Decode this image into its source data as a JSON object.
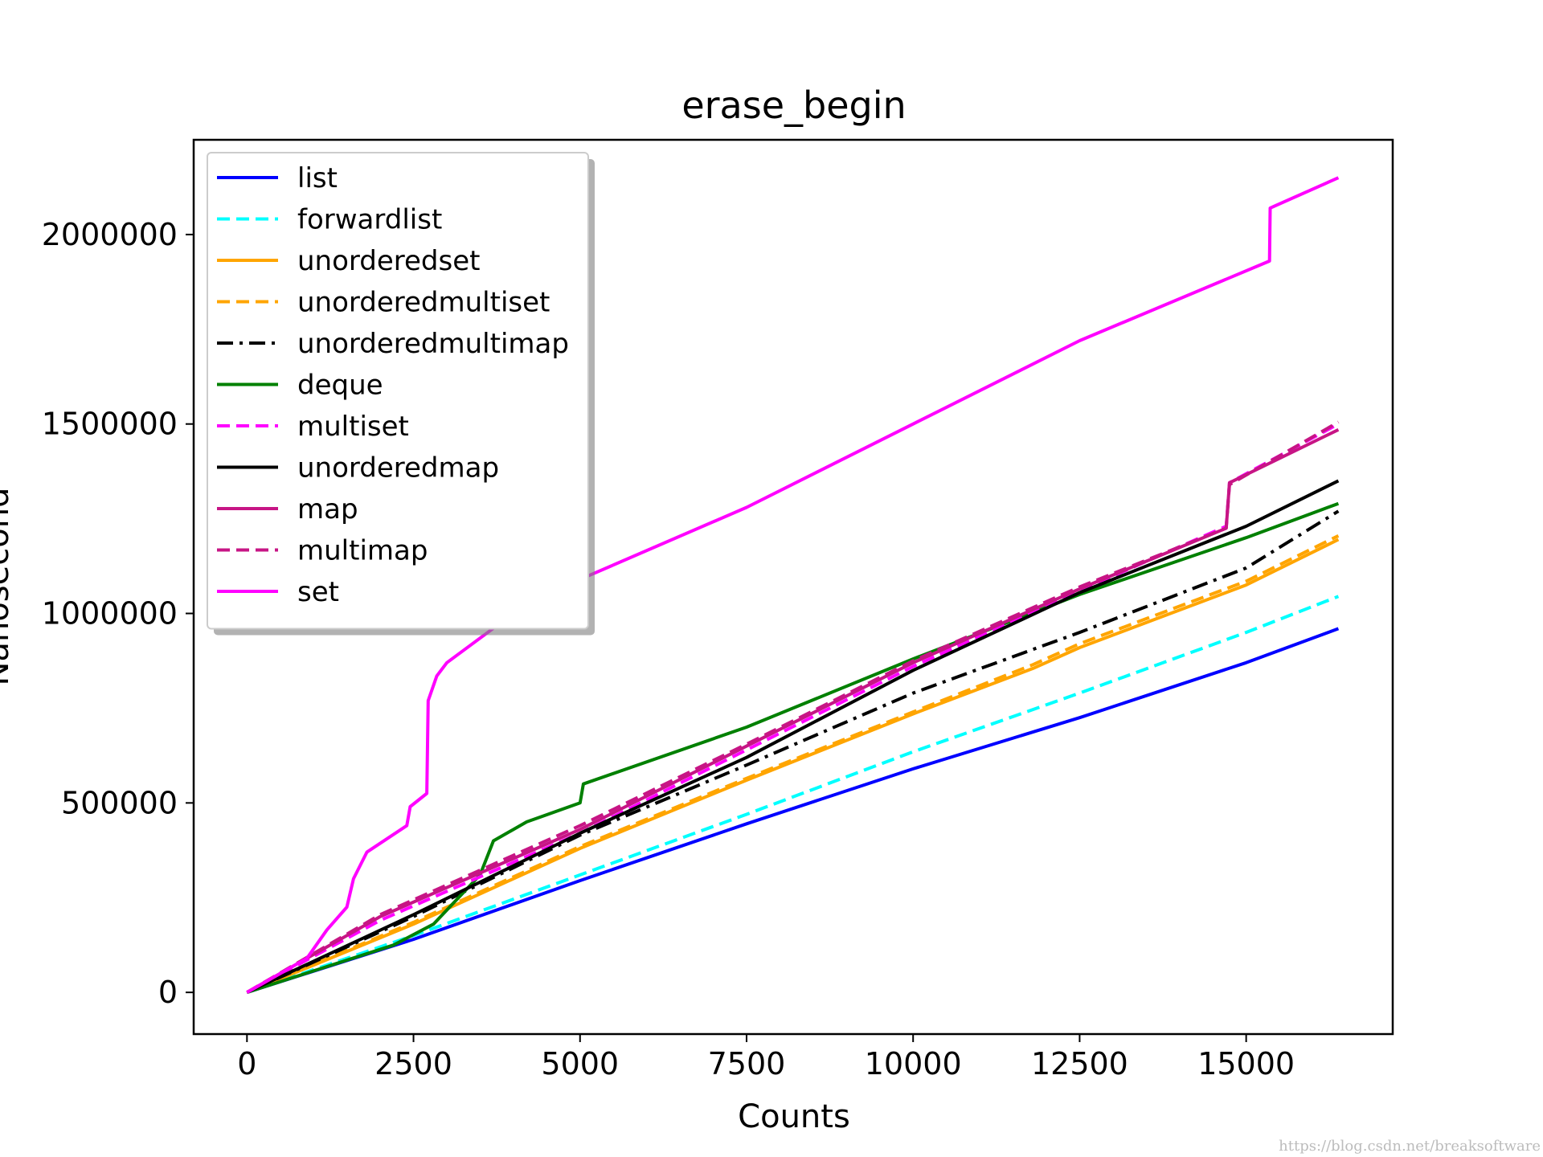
{
  "chart_data": {
    "type": "line",
    "title": "erase_begin",
    "xlabel": "Counts",
    "ylabel": "Nanosecond",
    "xlim": [
      -800,
      17200
    ],
    "ylim": [
      -110000,
      2250000
    ],
    "xticks": [
      0,
      2500,
      5000,
      7500,
      10000,
      12500,
      15000
    ],
    "xtick_labels": [
      "0",
      "2500",
      "5000",
      "7500",
      "10000",
      "12500",
      "15000"
    ],
    "yticks": [
      0,
      500000,
      1000000,
      1500000,
      2000000
    ],
    "ytick_labels": [
      "0",
      "500000",
      "1000000",
      "1500000",
      "2000000"
    ],
    "grid": false,
    "legend_position": "upper-left",
    "series": [
      {
        "name": "list",
        "color": "#0000ff",
        "dash": "solid",
        "points": [
          [
            0,
            0
          ],
          [
            2500,
            140000
          ],
          [
            5000,
            295000
          ],
          [
            7500,
            445000
          ],
          [
            10000,
            590000
          ],
          [
            12500,
            725000
          ],
          [
            15000,
            870000
          ],
          [
            16384,
            960000
          ]
        ]
      },
      {
        "name": "forwardlist",
        "color": "#00ffff",
        "dash": "dashed",
        "points": [
          [
            0,
            0
          ],
          [
            2500,
            150000
          ],
          [
            5000,
            310000
          ],
          [
            7500,
            470000
          ],
          [
            10000,
            635000
          ],
          [
            12500,
            790000
          ],
          [
            15000,
            950000
          ],
          [
            16384,
            1045000
          ]
        ]
      },
      {
        "name": "unorderedset",
        "color": "#ffa500",
        "dash": "solid",
        "points": [
          [
            0,
            0
          ],
          [
            2500,
            180000
          ],
          [
            5000,
            380000
          ],
          [
            7500,
            560000
          ],
          [
            10000,
            735000
          ],
          [
            11800,
            855000
          ],
          [
            12500,
            910000
          ],
          [
            15000,
            1075000
          ],
          [
            16384,
            1195000
          ]
        ]
      },
      {
        "name": "unorderedmultiset",
        "color": "#ffa500",
        "dash": "dashed",
        "points": [
          [
            0,
            0
          ],
          [
            2500,
            185000
          ],
          [
            5000,
            385000
          ],
          [
            7500,
            565000
          ],
          [
            10000,
            740000
          ],
          [
            11800,
            865000
          ],
          [
            12500,
            920000
          ],
          [
            15000,
            1085000
          ],
          [
            16384,
            1205000
          ]
        ]
      },
      {
        "name": "unorderedmultimap",
        "color": "#000000",
        "dash": "dashdot",
        "points": [
          [
            0,
            0
          ],
          [
            2500,
            200000
          ],
          [
            5000,
            415000
          ],
          [
            7500,
            600000
          ],
          [
            10000,
            790000
          ],
          [
            12500,
            950000
          ],
          [
            15000,
            1120000
          ],
          [
            16384,
            1270000
          ]
        ]
      },
      {
        "name": "deque",
        "color": "#008000",
        "dash": "solid",
        "points": [
          [
            0,
            0
          ],
          [
            2200,
            125000
          ],
          [
            2800,
            180000
          ],
          [
            3500,
            310000
          ],
          [
            3700,
            400000
          ],
          [
            4200,
            450000
          ],
          [
            5000,
            500000
          ],
          [
            5050,
            550000
          ],
          [
            7500,
            700000
          ],
          [
            10000,
            880000
          ],
          [
            12500,
            1050000
          ],
          [
            15000,
            1200000
          ],
          [
            16384,
            1290000
          ]
        ]
      },
      {
        "name": "multiset",
        "color": "#ff00ff",
        "dash": "dashed",
        "points": [
          [
            0,
            0
          ],
          [
            2000,
            190000
          ],
          [
            5000,
            420000
          ],
          [
            7500,
            640000
          ],
          [
            10000,
            860000
          ],
          [
            12500,
            1060000
          ],
          [
            14700,
            1230000
          ],
          [
            14750,
            1345000
          ],
          [
            16384,
            1500000
          ]
        ]
      },
      {
        "name": "unorderedmap",
        "color": "#000000",
        "dash": "solid",
        "points": [
          [
            0,
            0
          ],
          [
            2500,
            205000
          ],
          [
            5000,
            420000
          ],
          [
            7500,
            620000
          ],
          [
            10000,
            850000
          ],
          [
            12500,
            1055000
          ],
          [
            15000,
            1230000
          ],
          [
            16384,
            1350000
          ]
        ]
      },
      {
        "name": "map",
        "color": "#c71585",
        "dash": "solid",
        "points": [
          [
            0,
            0
          ],
          [
            2000,
            200000
          ],
          [
            5000,
            430000
          ],
          [
            7500,
            650000
          ],
          [
            10000,
            870000
          ],
          [
            12500,
            1065000
          ],
          [
            14700,
            1225000
          ],
          [
            14750,
            1345000
          ],
          [
            16384,
            1485000
          ]
        ]
      },
      {
        "name": "multimap",
        "color": "#c71585",
        "dash": "dashed",
        "points": [
          [
            0,
            0
          ],
          [
            2000,
            205000
          ],
          [
            5000,
            440000
          ],
          [
            7500,
            655000
          ],
          [
            10000,
            875000
          ],
          [
            12500,
            1070000
          ],
          [
            14700,
            1225000
          ],
          [
            14750,
            1340000
          ],
          [
            16384,
            1505000
          ]
        ]
      },
      {
        "name": "set",
        "color": "#ff00ff",
        "dash": "solid",
        "points": [
          [
            0,
            0
          ],
          [
            900,
            90000
          ],
          [
            1200,
            165000
          ],
          [
            1500,
            225000
          ],
          [
            1600,
            300000
          ],
          [
            1800,
            370000
          ],
          [
            2400,
            440000
          ],
          [
            2450,
            490000
          ],
          [
            2700,
            525000
          ],
          [
            2720,
            770000
          ],
          [
            2850,
            835000
          ],
          [
            3000,
            870000
          ],
          [
            4000,
            1000000
          ],
          [
            5000,
            1090000
          ],
          [
            7500,
            1280000
          ],
          [
            10000,
            1500000
          ],
          [
            12500,
            1720000
          ],
          [
            15350,
            1930000
          ],
          [
            15360,
            2070000
          ],
          [
            16384,
            2150000
          ]
        ]
      }
    ]
  },
  "watermark": "https://blog.csdn.net/breaksoftware"
}
